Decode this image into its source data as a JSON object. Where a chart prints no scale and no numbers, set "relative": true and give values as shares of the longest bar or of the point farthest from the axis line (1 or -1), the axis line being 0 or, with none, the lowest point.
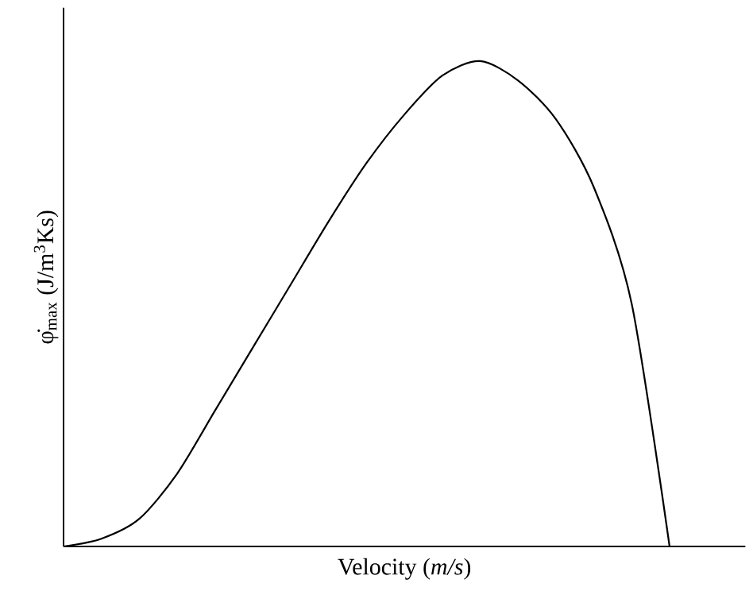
{
  "chart_data": {
    "type": "line",
    "relative": true,
    "xlabel": "Velocity (*m/s*)",
    "ylabel": "φ̇$_{max}$ (J/m$^{3}$Ks)",
    "categories": [
      null,
      null,
      null,
      null,
      null,
      null,
      null,
      null,
      null,
      null,
      null,
      null,
      null,
      null,
      null,
      null,
      null
    ],
    "series": [
      {
        "color": "#000000",
        "values": [
          0,
          0.016,
          0.057,
          0.15,
          0.28,
          0.41,
          0.54,
          0.67,
          0.79,
          0.89,
          0.97,
          1.0,
          0.96,
          0.88,
          0.74,
          0.5,
          0
        ]
      }
    ],
    "marker": "none",
    "line_style": "solid"
  }
}
